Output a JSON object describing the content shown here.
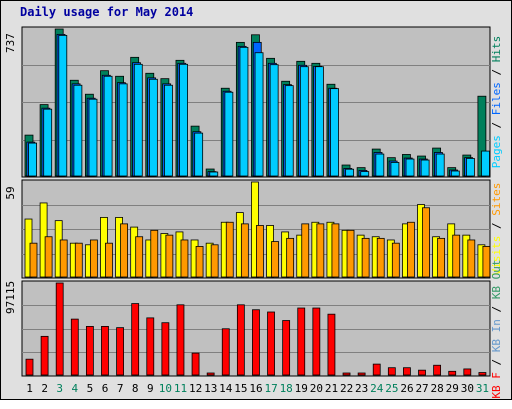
{
  "title": "Daily usage for May 2014",
  "colors": {
    "pages": "#00ccff",
    "files": "#0066ff",
    "hits": "#00805c",
    "visits": "#ffff00",
    "sites": "#ff9900",
    "kbin": "#6699cc",
    "kbout": "#339966",
    "kbf": "#ff0000",
    "weekend_day": "#00805c",
    "weekday": "#000000",
    "plot_bg": "#c0c0c0"
  },
  "legends": {
    "top": [
      {
        "text": "Pages",
        "color": "#00ccff"
      },
      {
        "text": " / ",
        "color": "#000000"
      },
      {
        "text": "Files",
        "color": "#0066ff"
      },
      {
        "text": " / ",
        "color": "#000000"
      },
      {
        "text": "Hits",
        "color": "#00805c"
      }
    ],
    "middle": [
      {
        "text": "Visits",
        "color": "#ffff00"
      },
      {
        "text": " / ",
        "color": "#000000"
      },
      {
        "text": "Sites",
        "color": "#ff9900"
      }
    ],
    "bottom": [
      {
        "text": "KB F",
        "color": "#ff0000"
      },
      {
        "text": " / ",
        "color": "#000000"
      },
      {
        "text": "KB In",
        "color": "#6699cc"
      },
      {
        "text": " / ",
        "color": "#000000"
      },
      {
        "text": "KB Out",
        "color": "#339966"
      }
    ]
  },
  "chart_data": {
    "type": "bar",
    "title": "Daily usage for May 2014",
    "categories": [
      "1",
      "2",
      "3",
      "4",
      "5",
      "6",
      "7",
      "8",
      "9",
      "10",
      "11",
      "12",
      "13",
      "14",
      "15",
      "16",
      "17",
      "18",
      "19",
      "20",
      "21",
      "22",
      "23",
      "24",
      "25",
      "26",
      "27",
      "28",
      "29",
      "30",
      "31"
    ],
    "weekend_days": [
      "3",
      "4",
      "10",
      "11",
      "17",
      "18",
      "24",
      "25",
      "31"
    ],
    "panels": [
      {
        "name": "requests",
        "max_label": "737",
        "ylim": [
          0,
          737
        ],
        "series": [
          {
            "name": "Hits",
            "values": [
              205,
              358,
              737,
              480,
              410,
              528,
              500,
              595,
              515,
              488,
              580,
              250,
              35,
              440,
              670,
              708,
              590,
              475,
              575,
              565,
              460,
              55,
              42,
              135,
              92,
              108,
              100,
              140,
              42,
              105,
              400
            ]
          },
          {
            "name": "Files",
            "values": [
              170,
              340,
              710,
              462,
              390,
              505,
              468,
              568,
              492,
              462,
              565,
              222,
              22,
              425,
              650,
              670,
              565,
              458,
              555,
              550,
              440,
              38,
              28,
              118,
              75,
              90,
              85,
              118,
              30,
              92,
              0
            ]
          },
          {
            "name": "Pages",
            "values": [
              165,
              335,
              705,
              455,
              385,
              500,
              462,
              560,
              485,
              455,
              560,
              215,
              20,
              420,
              645,
              618,
              558,
              453,
              548,
              548,
              438,
              34,
              22,
              110,
              68,
              85,
              80,
              110,
              25,
              88,
              125
            ]
          }
        ]
      },
      {
        "name": "visitors",
        "max_label": "59",
        "ylim": [
          0,
          59
        ],
        "series": [
          {
            "name": "Visits",
            "values": [
              36,
              46,
              35,
              21,
              20,
              37,
              37,
              31,
              23,
              27,
              28,
              23,
              21,
              34,
              40,
              59,
              32,
              28,
              26,
              34,
              34,
              29,
              26,
              25,
              23,
              33,
              45,
              25,
              33,
              26,
              20
            ]
          },
          {
            "name": "Sites",
            "values": [
              21,
              25,
              23,
              21,
              23,
              21,
              33,
              25,
              29,
              26,
              23,
              19,
              20,
              34,
              33,
              32,
              22,
              24,
              33,
              33,
              33,
              29,
              24,
              24,
              21,
              34,
              43,
              24,
              26,
              23,
              19
            ]
          }
        ]
      },
      {
        "name": "traffic",
        "max_label": "97115",
        "ylim": [
          0,
          97115
        ],
        "series": [
          {
            "name": "KB F",
            "values": [
              16700,
              40800,
              97115,
              59000,
              51300,
              51300,
              50000,
              75400,
              60300,
              55200,
              74100,
              23100,
              1300,
              48800,
              74100,
              68900,
              66500,
              57500,
              70700,
              70700,
              64200,
              1300,
              1300,
              11500,
              7700,
              7700,
              5100,
              10300,
              3900,
              6400,
              2600
            ]
          }
        ]
      }
    ]
  }
}
